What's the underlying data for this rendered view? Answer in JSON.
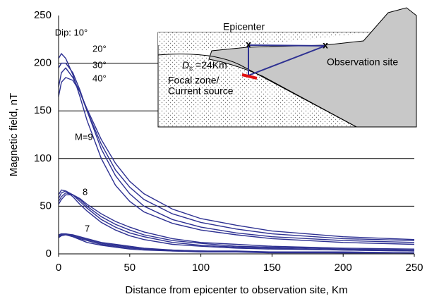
{
  "chart_data": {
    "type": "line",
    "xlabel": "Distance from epicenter to  observation site, Km",
    "ylabel": "Magnetic field, nT",
    "x": [
      0,
      2,
      5,
      10,
      15,
      20,
      30,
      40,
      50,
      60,
      80,
      100,
      125,
      150,
      200,
      250
    ],
    "color": "#2e3192",
    "series": [
      {
        "values": [
          205,
          210,
          205,
          188,
          165,
          140,
          100,
          72,
          55,
          44,
          32,
          25,
          20,
          16,
          12,
          10
        ]
      },
      {
        "values": [
          195,
          200,
          200,
          190,
          172,
          150,
          110,
          82,
          63,
          50,
          36,
          28,
          22,
          18,
          14,
          12
        ]
      },
      {
        "values": [
          175,
          190,
          195,
          185,
          170,
          150,
          115,
          88,
          70,
          57,
          42,
          33,
          26,
          21,
          16,
          14
        ]
      },
      {
        "values": [
          165,
          180,
          185,
          182,
          170,
          152,
          120,
          95,
          76,
          63,
          47,
          37,
          30,
          24,
          18,
          15
        ]
      },
      {
        "values": [
          62,
          67,
          66,
          60,
          52,
          45,
          33,
          25,
          19,
          15,
          10,
          8,
          6,
          5,
          4,
          3
        ]
      },
      {
        "values": [
          58,
          64,
          66,
          62,
          55,
          48,
          36,
          28,
          22,
          18,
          12,
          9,
          7,
          6,
          4,
          3
        ]
      },
      {
        "values": [
          55,
          60,
          64,
          62,
          57,
          50,
          39,
          31,
          25,
          20,
          14,
          11,
          8,
          7,
          5,
          4
        ]
      },
      {
        "values": [
          52,
          57,
          62,
          62,
          58,
          52,
          42,
          34,
          28,
          23,
          16,
          12,
          10,
          8,
          6,
          5
        ]
      },
      {
        "values": [
          20,
          21,
          20,
          18,
          15,
          12,
          9,
          7,
          5,
          4,
          3,
          2,
          2,
          1,
          1,
          1
        ]
      },
      {
        "values": [
          19,
          21,
          21,
          19,
          16,
          14,
          10,
          8,
          6,
          5,
          3,
          3,
          2,
          2,
          1,
          1
        ]
      },
      {
        "values": [
          18,
          20,
          21,
          20,
          17,
          15,
          11,
          9,
          7,
          5,
          4,
          3,
          2,
          2,
          2,
          1
        ]
      },
      {
        "values": [
          17,
          19,
          20,
          20,
          18,
          16,
          12,
          10,
          8,
          6,
          4,
          3,
          3,
          2,
          2,
          1
        ]
      }
    ],
    "annotations": [
      "Dip: 10°",
      "20°",
      "30°",
      "40°",
      "M=9",
      "8",
      "7"
    ],
    "inset": {
      "epicenter": "Epicenter",
      "observation": "Observation site",
      "depth_symbol": "D",
      "depth_subscript": "c",
      "depth_text": " =24Km",
      "focal_line1": "Focal zone/",
      "focal_line2": "Current source"
    },
    "xlim": [
      0,
      250
    ],
    "xticks": [
      0,
      50,
      100,
      150,
      200,
      250
    ],
    "ylim": [
      0,
      250
    ],
    "yticks": [
      0,
      50,
      100,
      150,
      200,
      250
    ],
    "grid": true
  }
}
